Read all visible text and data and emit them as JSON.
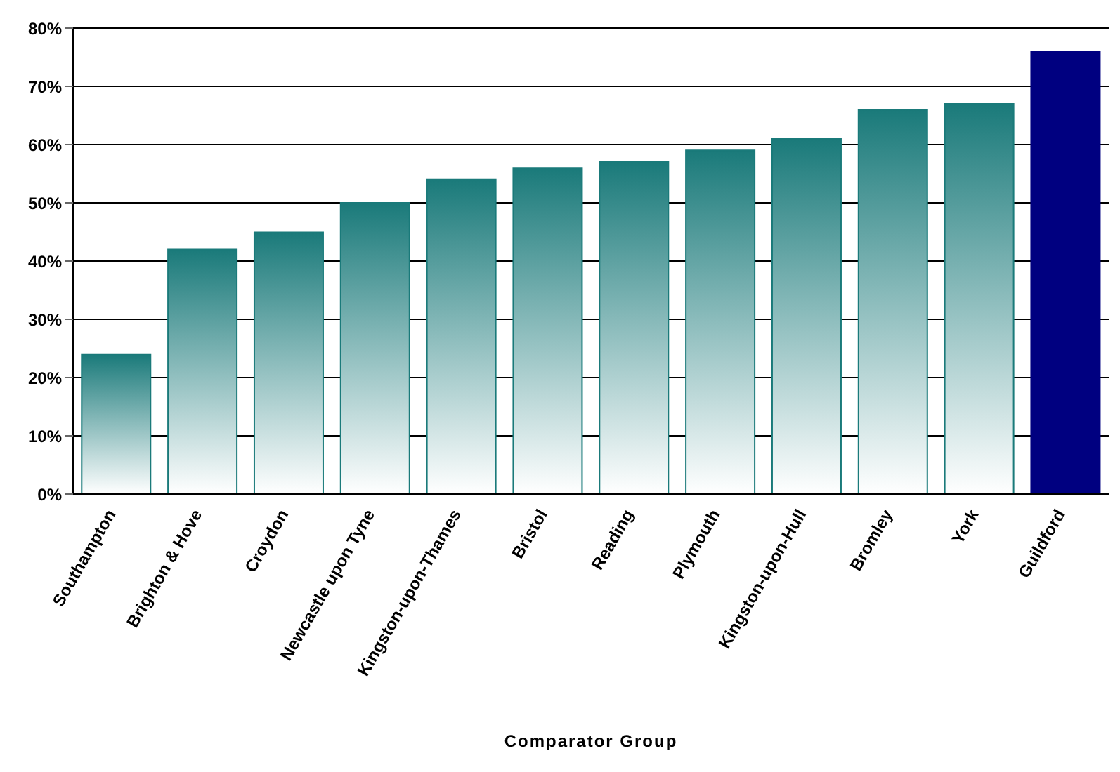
{
  "chart_data": {
    "type": "bar",
    "xlabel": "Comparator Group",
    "categories": [
      "Southampton",
      "Brighton & Hove",
      "Croydon",
      "Newcastle upon Tyne",
      "Kingston-upon-Thames",
      "Bristol",
      "Reading",
      "Plymouth",
      "Kingston-upon-Hull",
      "Bromley",
      "York",
      "Guildford"
    ],
    "values": [
      24,
      42,
      45,
      50,
      54,
      56,
      57,
      59,
      61,
      66,
      67,
      76
    ],
    "colors": [
      "#1a7a7a",
      "#1a7a7a",
      "#1a7a7a",
      "#1a7a7a",
      "#1a7a7a",
      "#1a7a7a",
      "#1a7a7a",
      "#1a7a7a",
      "#1a7a7a",
      "#1a7a7a",
      "#1a7a7a",
      "#000080"
    ],
    "ylim": [
      0,
      80
    ],
    "yticks": [
      {
        "value": 0,
        "label": "0%"
      },
      {
        "value": 10,
        "label": "10%"
      },
      {
        "value": 20,
        "label": "20%"
      },
      {
        "value": 30,
        "label": "30%"
      },
      {
        "value": 40,
        "label": "40%"
      },
      {
        "value": 50,
        "label": "50%"
      },
      {
        "value": 60,
        "label": "60%"
      },
      {
        "value": 70,
        "label": "70%"
      },
      {
        "value": 80,
        "label": "80%"
      }
    ],
    "grid": "y"
  }
}
